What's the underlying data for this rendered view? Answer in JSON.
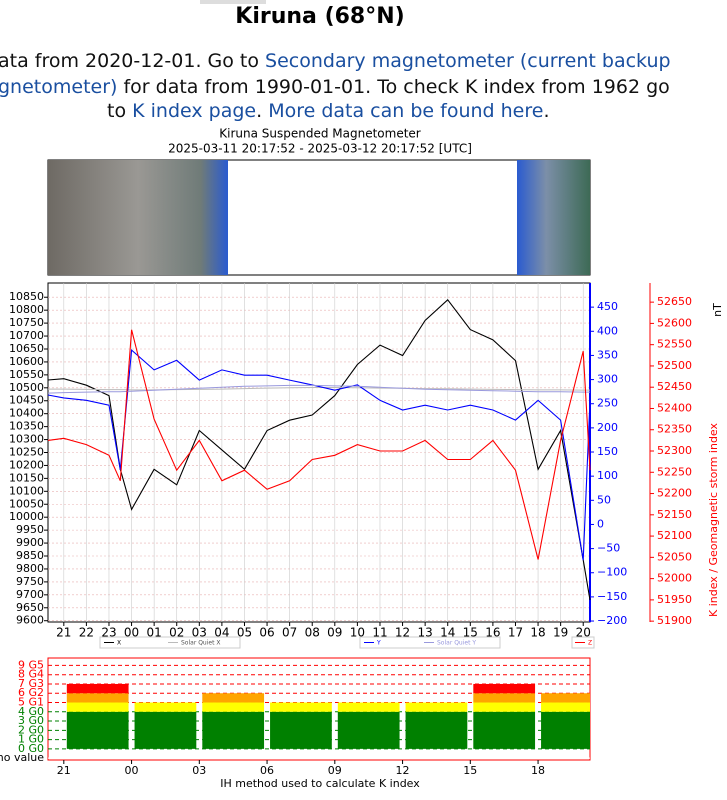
{
  "header": {
    "title": "Kiruna (68°N)"
  },
  "intro": {
    "lines": [
      [
        {
          "text": "ata from 2020-12-01. Go to "
        },
        {
          "text": "Secondary magnetometer (current backup",
          "link": true
        }
      ],
      [
        {
          "text": "gnetometer)",
          "link": true
        },
        {
          "text": " for data from 1990-01-01. To check K index from 1962 go"
        }
      ],
      [
        {
          "text": "to "
        },
        {
          "text": "K index page",
          "link": true
        },
        {
          "text": ". "
        },
        {
          "text": "More data can be found here",
          "link": true
        },
        {
          "text": "."
        }
      ]
    ]
  },
  "chart_data": [
    {
      "type": "line",
      "title": "Kiruna Suspended Magnetometer",
      "subtitle": "2025-03-11 20:17:52 - 2025-03-12 20:17:52 [UTC]",
      "y_label": "nT",
      "y3_label": "K index / Geomagnetic storm index",
      "x": [
        20.3,
        21,
        22,
        23,
        23.5,
        24,
        25,
        26,
        27,
        28,
        29,
        30,
        31,
        32,
        33,
        34,
        35,
        36,
        37,
        38,
        39,
        40,
        41,
        42,
        43,
        44,
        44.3
      ],
      "xlim": [
        20.3,
        44.3
      ],
      "xticks": [
        21,
        22,
        23,
        {
          "value": 24,
          "label": "00"
        },
        {
          "value": 25,
          "label": "01"
        },
        {
          "value": 26,
          "label": "02"
        },
        {
          "value": 27,
          "label": "03"
        },
        {
          "value": 28,
          "label": "04"
        },
        {
          "value": 29,
          "label": "05"
        },
        {
          "value": 30,
          "label": "06"
        },
        {
          "value": 31,
          "label": "07"
        },
        {
          "value": 32,
          "label": "08"
        },
        {
          "value": 33,
          "label": "09"
        },
        {
          "value": 34,
          "label": "10"
        },
        {
          "value": 35,
          "label": "11"
        },
        {
          "value": 36,
          "label": "12"
        },
        {
          "value": 37,
          "label": "13"
        },
        {
          "value": 38,
          "label": "14"
        },
        {
          "value": 39,
          "label": "15"
        },
        {
          "value": 40,
          "label": "16"
        },
        {
          "value": 41,
          "label": "17"
        },
        {
          "value": 42,
          "label": "18"
        },
        {
          "value": 43,
          "label": "19"
        },
        {
          "value": 44,
          "label": "20"
        }
      ],
      "ylim": [
        9595,
        10905
      ],
      "yticks": [
        9600,
        9650,
        9700,
        9750,
        9800,
        9850,
        9900,
        9950,
        10000,
        10050,
        10100,
        10150,
        10200,
        10250,
        10300,
        10350,
        10400,
        10450,
        10500,
        10550,
        10600,
        10650,
        10700,
        10750,
        10800,
        10850
      ],
      "y2lim": [
        -202,
        500
      ],
      "y2ticks": [
        {
          "value": -200,
          "label": "−200"
        },
        {
          "value": -150,
          "label": "−150"
        },
        {
          "value": -100,
          "label": "−100"
        },
        {
          "value": -50,
          "label": "−50"
        },
        0,
        50,
        100,
        150,
        200,
        250,
        300,
        350,
        400,
        450
      ],
      "y3lim": [
        51898,
        52695
      ],
      "y3ticks": [
        51900,
        51950,
        52000,
        52050,
        52100,
        52150,
        52200,
        52250,
        52300,
        52350,
        52400,
        52450,
        52500,
        52550,
        52600,
        52650
      ],
      "grid": true,
      "series": [
        {
          "name": "X",
          "color": "#000000",
          "axis": "y",
          "values": [
            10530,
            10535,
            10510,
            10470,
            10185,
            10030,
            10185,
            10125,
            10335,
            10260,
            10185,
            10335,
            10375,
            10395,
            10470,
            10590,
            10665,
            10625,
            10760,
            10840,
            10725,
            10685,
            10605,
            10185,
            10335,
            9835,
            9680
          ]
        },
        {
          "name": "Solar Quiet X",
          "color": "#bbbbbb",
          "axis": "y",
          "values": [
            10495,
            10495,
            10494,
            10493,
            10493,
            10492,
            10492,
            10493,
            10494,
            10495,
            10497,
            10499,
            10500,
            10501,
            10501,
            10500,
            10499,
            10498,
            10497,
            10496,
            10495,
            10494,
            10493,
            10492,
            10492,
            10491,
            10491
          ]
        },
        {
          "name": "Y",
          "color": "#0000ff",
          "axis": "y2",
          "values": [
            268,
            262,
            257,
            247,
            113,
            361,
            320,
            340,
            299,
            320,
            309,
            309,
            299,
            289,
            278,
            289,
            257,
            237,
            247,
            237,
            247,
            237,
            216,
            257,
            216,
            -74,
            257
          ]
        },
        {
          "name": "Solar Quiet Y",
          "color": "#9999dd",
          "axis": "y2",
          "values": [
            272,
            273,
            274,
            275,
            275,
            276,
            278,
            280,
            282,
            284,
            286,
            287,
            288,
            288,
            287,
            286,
            284,
            282,
            280,
            279,
            278,
            277,
            276,
            275,
            275,
            274,
            274
          ]
        },
        {
          "name": "Z",
          "color": "#ff0000",
          "axis": "y3",
          "values": [
            52325,
            52330,
            52315,
            52290,
            52230,
            52585,
            52375,
            52255,
            52325,
            52230,
            52255,
            52210,
            52230,
            52280,
            52290,
            52315,
            52300,
            52300,
            52325,
            52280,
            52280,
            52325,
            52255,
            52045,
            52325,
            52535,
            52255
          ]
        }
      ]
    },
    {
      "type": "bar",
      "xlabel": "IH method used to calculate K index",
      "x": [
        21,
        24,
        27,
        30,
        33,
        36,
        39,
        42
      ],
      "xlim": [
        20.3,
        44.3
      ],
      "xticks": [
        21,
        {
          "value": 24,
          "label": "00"
        },
        {
          "value": 27,
          "label": "03"
        },
        {
          "value": 30,
          "label": "06"
        },
        {
          "value": 33,
          "label": "09"
        },
        {
          "value": 36,
          "label": "12"
        },
        {
          "value": 39,
          "label": "15"
        },
        {
          "value": 42,
          "label": "18"
        }
      ],
      "ylim": [
        -1.2,
        9.8
      ],
      "yticks": [
        {
          "value": -1,
          "label": "no value"
        },
        {
          "value": 0,
          "label": "0 G0"
        },
        {
          "value": 1,
          "label": "1 G0"
        },
        {
          "value": 2,
          "label": "2 G0"
        },
        {
          "value": 3,
          "label": "3 G0"
        },
        {
          "value": 4,
          "label": "4 G0"
        },
        {
          "value": 5,
          "label": "5 G1"
        },
        {
          "value": 6,
          "label": "6 G2"
        },
        {
          "value": 7,
          "label": "7 G3"
        },
        {
          "value": 8,
          "label": "8 G4"
        },
        {
          "value": 9,
          "label": "9 G5"
        }
      ],
      "grid_colors": [
        "#ffffff",
        "#008000",
        "#008000",
        "#008000",
        "#008000",
        "#008000",
        "#ff0000",
        "#ff0000",
        "#ff0000",
        "#ff0000",
        "#ff0000"
      ],
      "series": [
        {
          "color": "#008000",
          "values": [
            4,
            4,
            4,
            4,
            4,
            4,
            4,
            4
          ]
        },
        {
          "color": "#ffff00",
          "values": [
            1,
            1,
            1,
            1,
            1,
            1,
            1,
            1
          ]
        },
        {
          "color": "#ffa500",
          "values": [
            1,
            0,
            1,
            0,
            0,
            0,
            1,
            1
          ]
        },
        {
          "color": "#ff0000",
          "values": [
            1,
            0,
            0,
            0,
            0,
            0,
            1,
            0
          ]
        }
      ]
    }
  ]
}
